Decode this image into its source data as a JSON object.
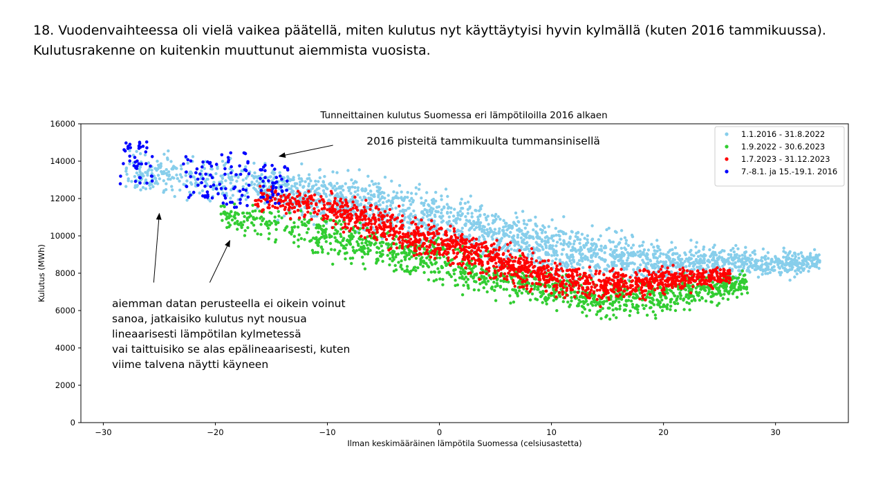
{
  "slide": {
    "heading_lines": [
      "18. Vuodenvaihteessa oli vielä vaikea päätellä, miten kulutus nyt käyttäytyisi hyvin kylmällä (kuten 2016 tammikuussa).",
      "Kulutusrakenne on kuitenkin muuttunut aiemmista vuosista."
    ]
  },
  "chart_data": {
    "type": "scatter",
    "title": "Tunneittainen kulutus Suomessa eri lämpötiloilla 2016 alkaen",
    "xlabel": "Ilman keskimääräinen lämpötila Suomessa (celsiusastetta)",
    "ylabel": "Kulutus (MWh)",
    "xlim": [
      -32,
      36.5
    ],
    "ylim": [
      0,
      16000
    ],
    "xticks": [
      -30,
      -20,
      -10,
      0,
      10,
      20,
      30
    ],
    "xtick_labels": [
      "−30",
      "−20",
      "−10",
      "0",
      "10",
      "20",
      "30"
    ],
    "yticks": [
      0,
      2000,
      4000,
      6000,
      8000,
      10000,
      12000,
      14000,
      16000
    ],
    "ytick_labels": [
      "0",
      "2000",
      "4000",
      "6000",
      "8000",
      "10000",
      "12000",
      "14000",
      "16000"
    ],
    "grid": false,
    "legend_position": "top-right",
    "series": [
      {
        "name": "1.1.2016 - 31.8.2022",
        "color": "#87CEEB",
        "band": {
          "x_range": [
            -28,
            34
          ],
          "center": [
            [
              -28,
              13300
            ],
            [
              -20,
              13000
            ],
            [
              -10,
              12100
            ],
            [
              0,
              10800
            ],
            [
              10,
              9300
            ],
            [
              20,
              8600
            ],
            [
              30,
              8550
            ],
            [
              34,
              8600
            ]
          ],
          "spread": [
            [
              -28,
              900
            ],
            [
              -15,
              1000
            ],
            [
              0,
              1300
            ],
            [
              10,
              1200
            ],
            [
              20,
              900
            ],
            [
              34,
              500
            ]
          ]
        }
      },
      {
        "name": "1.9.2022 - 30.6.2023",
        "color": "#32CD32",
        "band": {
          "x_range": [
            -19.5,
            27.5
          ],
          "center": [
            [
              -19.5,
              11100
            ],
            [
              -10,
              10000
            ],
            [
              0,
              8600
            ],
            [
              10,
              7100
            ],
            [
              15,
              6600
            ],
            [
              20,
              6800
            ],
            [
              27,
              7400
            ]
          ],
          "spread": [
            [
              -19.5,
              700
            ],
            [
              -10,
              900
            ],
            [
              0,
              1100
            ],
            [
              10,
              900
            ],
            [
              20,
              800
            ],
            [
              27,
              500
            ]
          ]
        }
      },
      {
        "name": "1.7.2023 - 31.12.2023",
        "color": "#FF0000",
        "band": {
          "x_range": [
            -16.5,
            26
          ],
          "center": [
            [
              -16.5,
              12000
            ],
            [
              -10,
              11500
            ],
            [
              -5,
              10500
            ],
            [
              0,
              9600
            ],
            [
              5,
              8700
            ],
            [
              10,
              7800
            ],
            [
              15,
              7300
            ],
            [
              20,
              7600
            ],
            [
              26,
              7900
            ]
          ],
          "spread": [
            [
              -16.5,
              500
            ],
            [
              -8,
              800
            ],
            [
              0,
              900
            ],
            [
              10,
              800
            ],
            [
              20,
              600
            ],
            [
              26,
              400
            ]
          ]
        }
      },
      {
        "name": "7.-8.1. ja 15.-19.1. 2016",
        "color": "#0000FF",
        "clusters": [
          {
            "x": [
              -28.5,
              -25.5
            ],
            "y": [
              12700,
              15100
            ]
          },
          {
            "x": [
              -23,
              -19.5
            ],
            "y": [
              12000,
              14300
            ]
          },
          {
            "x": [
              -19.5,
              -16.8
            ],
            "y": [
              11500,
              14500
            ]
          },
          {
            "x": [
              -16,
              -13.5
            ],
            "y": [
              11700,
              13800
            ]
          }
        ]
      }
    ],
    "annotations": [
      {
        "text": "2016 pisteitä tammikuulta tummansinisellä",
        "text_pos": [
          -6.5,
          14880
        ],
        "arrow_from": [
          -9.5,
          14850
        ],
        "arrow_to": [
          -14.3,
          14260
        ]
      }
    ],
    "arrows": [
      {
        "from": [
          -25.5,
          7500
        ],
        "to": [
          -25,
          11200
        ]
      },
      {
        "from": [
          -20.5,
          7500
        ],
        "to": [
          -18.7,
          9750
        ]
      }
    ]
  },
  "annotation_left": {
    "lines": [
      "aiemman datan perusteella ei oikein voinut",
      "sanoa, jatkaisiko kulutus nyt nousua",
      "lineaarisesti lämpötilan kylmetessä",
      "vai taittuisiko se alas epälineaarisesti, kuten",
      "viime talvena näytti käyneen"
    ]
  }
}
